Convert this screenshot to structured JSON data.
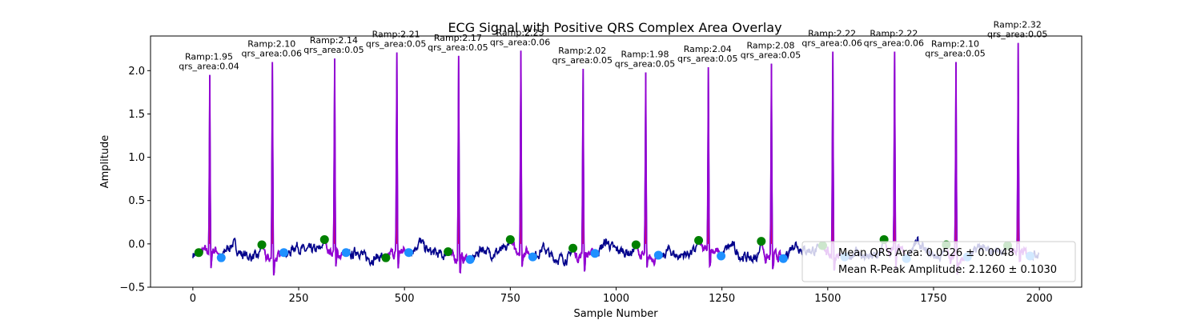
{
  "chart_data": {
    "type": "line",
    "title": "ECG Signal with Positive QRS Complex Area Overlay",
    "xlabel": "Sample Number",
    "ylabel": "Amplitude",
    "xlim": [
      -100,
      2100
    ],
    "ylim": [
      -0.5,
      2.4
    ],
    "xticks": [
      0,
      250,
      500,
      750,
      1000,
      1250,
      1500,
      1750,
      2000
    ],
    "yticks": [
      -0.5,
      0.0,
      0.5,
      1.0,
      1.5,
      2.0
    ],
    "ytick_labels": [
      "−0.5",
      "0.0",
      "0.5",
      "1.0",
      "1.5",
      "2.0"
    ],
    "grid": false,
    "colors": {
      "signal": "#00008b",
      "qrs_line": "#9400d3",
      "qrs_fill": "#ff0022",
      "onset_marker": "#008000",
      "offset_marker": "#1e90ff"
    },
    "beats": [
      {
        "r_x": 40,
        "r_amp": 1.95,
        "ramp_label": "Ramp:1.95",
        "area_label": "qrs_area:0.04",
        "onset": [
          14,
          -0.1
        ],
        "offset": [
          67,
          -0.16
        ]
      },
      {
        "r_x": 188,
        "r_amp": 2.1,
        "ramp_label": "Ramp:2.10",
        "area_label": "qrs_area:0.06",
        "onset": [
          163,
          -0.01
        ],
        "offset": [
          215,
          -0.1
        ]
      },
      {
        "r_x": 335,
        "r_amp": 2.14,
        "ramp_label": "Ramp:2.14",
        "area_label": "qrs_area:0.05",
        "onset": [
          311,
          0.05
        ],
        "offset": [
          362,
          -0.1
        ]
      },
      {
        "r_x": 482,
        "r_amp": 2.21,
        "ramp_label": "Ramp:2.21",
        "area_label": "qrs_area:0.05",
        "onset": [
          456,
          -0.16
        ],
        "offset": [
          510,
          -0.1
        ]
      },
      {
        "r_x": 628,
        "r_amp": 2.17,
        "ramp_label": "Ramp:2.17",
        "area_label": "qrs_area:0.05",
        "onset": [
          603,
          -0.09
        ],
        "offset": [
          655,
          -0.18
        ]
      },
      {
        "r_x": 775,
        "r_amp": 2.23,
        "ramp_label": "Ramp:2.23",
        "area_label": "qrs_area:0.06",
        "onset": [
          750,
          0.05
        ],
        "offset": [
          803,
          -0.15
        ]
      },
      {
        "r_x": 922,
        "r_amp": 2.02,
        "ramp_label": "Ramp:2.02",
        "area_label": "qrs_area:0.05",
        "onset": [
          898,
          -0.05
        ],
        "offset": [
          950,
          -0.11
        ]
      },
      {
        "r_x": 1070,
        "r_amp": 1.98,
        "ramp_label": "Ramp:1.98",
        "area_label": "qrs_area:0.05",
        "onset": [
          1047,
          -0.01
        ],
        "offset": [
          1100,
          -0.13
        ]
      },
      {
        "r_x": 1218,
        "r_amp": 2.04,
        "ramp_label": "Ramp:2.04",
        "area_label": "qrs_area:0.05",
        "onset": [
          1195,
          0.04
        ],
        "offset": [
          1248,
          -0.14
        ]
      },
      {
        "r_x": 1367,
        "r_amp": 2.08,
        "ramp_label": "Ramp:2.08",
        "area_label": "qrs_area:0.05",
        "onset": [
          1343,
          0.03
        ],
        "offset": [
          1395,
          -0.17
        ]
      },
      {
        "r_x": 1512,
        "r_amp": 2.22,
        "ramp_label": "Ramp:2.22",
        "area_label": "qrs_area:0.06",
        "onset": [
          1488,
          -0.02
        ],
        "offset": [
          1540,
          -0.15
        ]
      },
      {
        "r_x": 1658,
        "r_amp": 2.22,
        "ramp_label": "Ramp:2.22",
        "area_label": "qrs_area:0.06",
        "onset": [
          1633,
          0.05
        ],
        "offset": [
          1686,
          -0.17
        ]
      },
      {
        "r_x": 1803,
        "r_amp": 2.1,
        "ramp_label": "Ramp:2.10",
        "area_label": "qrs_area:0.05",
        "onset": [
          1780,
          -0.01
        ],
        "offset": [
          1830,
          -0.15
        ]
      },
      {
        "r_x": 1950,
        "r_amp": 2.32,
        "ramp_label": "Ramp:2.32",
        "area_label": "qrs_area:0.05",
        "onset": [
          1925,
          -0.02
        ],
        "offset": [
          1978,
          -0.14
        ]
      }
    ],
    "legend": {
      "placement": "lower-right",
      "entries": [
        "Mean QRS Area: 0.0526 ± 0.0048",
        "Mean R-Peak Amplitude: 2.1260 ± 0.1030"
      ]
    }
  }
}
